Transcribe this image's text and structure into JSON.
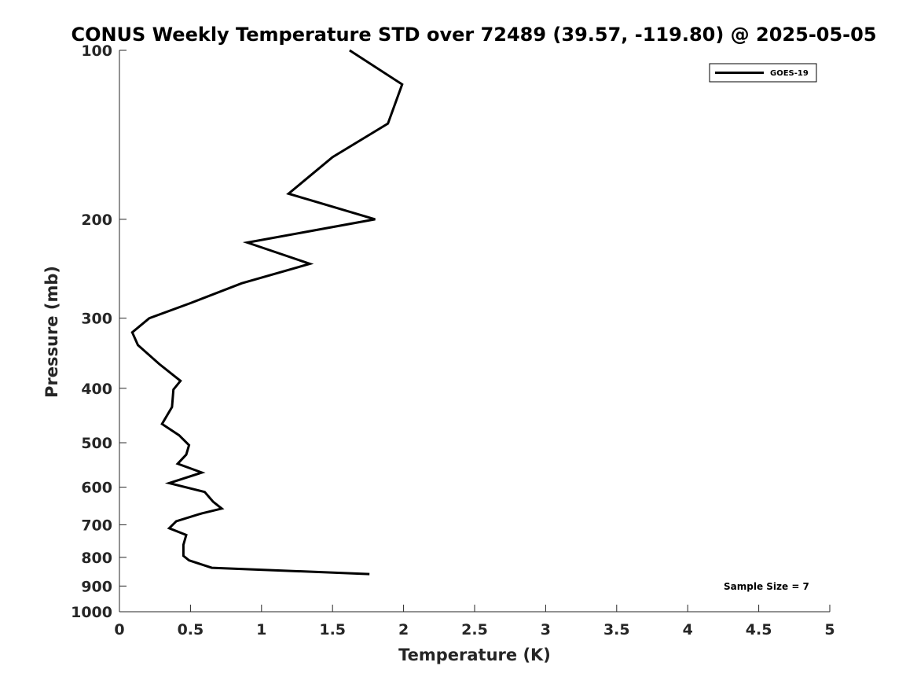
{
  "chart_data": {
    "type": "line",
    "title": "CONUS Weekly Temperature STD over 72489 (39.57, -119.80) @ 2025-05-05",
    "xlabel": "Temperature (K)",
    "ylabel": "Pressure (mb)",
    "xlim": [
      0,
      5
    ],
    "ylim": [
      100,
      1000
    ],
    "y_scale": "log",
    "y_reversed": true,
    "x_ticks": [
      "0",
      "0.5",
      "1",
      "1.5",
      "2",
      "2.5",
      "3",
      "3.5",
      "4",
      "4.5",
      "5"
    ],
    "y_ticks": [
      "100",
      "200",
      "300",
      "400",
      "500",
      "600",
      "700",
      "800",
      "900",
      "1000"
    ],
    "grid": false,
    "legend_position": "top-right",
    "series": [
      {
        "name": "GOES-19",
        "color": "#000000",
        "points": [
          [
            1.62,
            100
          ],
          [
            1.99,
            115
          ],
          [
            1.89,
            135
          ],
          [
            1.5,
            155
          ],
          [
            1.19,
            180
          ],
          [
            1.8,
            200
          ],
          [
            0.9,
            220
          ],
          [
            1.34,
            240
          ],
          [
            0.86,
            260
          ],
          [
            0.5,
            282
          ],
          [
            0.21,
            300
          ],
          [
            0.09,
            318
          ],
          [
            0.13,
            335
          ],
          [
            0.28,
            362
          ],
          [
            0.43,
            388
          ],
          [
            0.38,
            402
          ],
          [
            0.37,
            432
          ],
          [
            0.3,
            463
          ],
          [
            0.42,
            485
          ],
          [
            0.49,
            505
          ],
          [
            0.47,
            525
          ],
          [
            0.41,
            545
          ],
          [
            0.58,
            565
          ],
          [
            0.35,
            590
          ],
          [
            0.6,
            612
          ],
          [
            0.66,
            637
          ],
          [
            0.72,
            655
          ],
          [
            0.58,
            668
          ],
          [
            0.4,
            690
          ],
          [
            0.35,
            710
          ],
          [
            0.47,
            730
          ],
          [
            0.45,
            760
          ],
          [
            0.45,
            795
          ],
          [
            0.49,
            810
          ],
          [
            0.65,
            835
          ],
          [
            1.76,
            857
          ]
        ]
      }
    ],
    "annotation": "Sample Size = 7"
  }
}
